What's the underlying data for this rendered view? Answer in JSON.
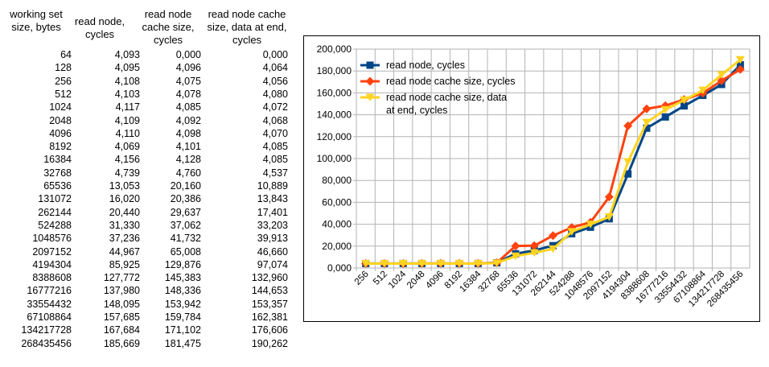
{
  "table": {
    "headers": [
      "working set\nsize, bytes",
      "read node,\ncycles",
      "read node\ncache size,\ncycles",
      "read node cache\nsize, data at end,\ncycles"
    ],
    "rows": [
      [
        "64",
        "4,093",
        "0,000",
        "0,000"
      ],
      [
        "128",
        "4,095",
        "4,096",
        "4,064"
      ],
      [
        "256",
        "4,108",
        "4,075",
        "4,056"
      ],
      [
        "512",
        "4,103",
        "4,078",
        "4,080"
      ],
      [
        "1024",
        "4,117",
        "4,085",
        "4,072"
      ],
      [
        "2048",
        "4,109",
        "4,092",
        "4,068"
      ],
      [
        "4096",
        "4,110",
        "4,098",
        "4,070"
      ],
      [
        "8192",
        "4,069",
        "4,101",
        "4,085"
      ],
      [
        "16384",
        "4,156",
        "4,128",
        "4,085"
      ],
      [
        "32768",
        "4,739",
        "4,760",
        "4,537"
      ],
      [
        "65536",
        "13,053",
        "20,160",
        "10,889"
      ],
      [
        "131072",
        "16,020",
        "20,386",
        "13,843"
      ],
      [
        "262144",
        "20,440",
        "29,637",
        "17,401"
      ],
      [
        "524288",
        "31,330",
        "37,062",
        "33,203"
      ],
      [
        "1048576",
        "37,236",
        "41,732",
        "39,913"
      ],
      [
        "2097152",
        "44,967",
        "65,008",
        "46,660"
      ],
      [
        "4194304",
        "85,925",
        "129,876",
        "97,074"
      ],
      [
        "8388608",
        "127,772",
        "145,383",
        "132,960"
      ],
      [
        "16777216",
        "137,980",
        "148,336",
        "144,653"
      ],
      [
        "33554432",
        "148,095",
        "153,942",
        "153,357"
      ],
      [
        "67108864",
        "157,685",
        "159,784",
        "162,381"
      ],
      [
        "134217728",
        "167,684",
        "171,102",
        "176,606"
      ],
      [
        "268435456",
        "185,669",
        "181,475",
        "190,262"
      ]
    ]
  },
  "chart_data": {
    "type": "line",
    "categories": [
      "256",
      "512",
      "1024",
      "2048",
      "4096",
      "8192",
      "16384",
      "32768",
      "65536",
      "131072",
      "262144",
      "524288",
      "1048576",
      "2097152",
      "4194304",
      "8388608",
      "16777216",
      "33554432",
      "67108864",
      "134217728",
      "268435456"
    ],
    "ylim": [
      0,
      200000
    ],
    "yticks": [
      "0,000",
      "20,000",
      "40,000",
      "60,000",
      "80,000",
      "100,000",
      "120,000",
      "140,000",
      "160,000",
      "180,000",
      "200,000"
    ],
    "grid": true,
    "legend_position": "top-left",
    "series": [
      {
        "name": "read node, cycles",
        "color": "#004586",
        "marker": "square",
        "values": [
          4108,
          4103,
          4117,
          4109,
          4110,
          4069,
          4156,
          4739,
          13053,
          16020,
          20440,
          31330,
          37236,
          44967,
          85925,
          127772,
          137980,
          148095,
          157685,
          167684,
          185669
        ]
      },
      {
        "name": "read node cache size, cycles",
        "color": "#ff420e",
        "marker": "diamond",
        "values": [
          4075,
          4078,
          4085,
          4092,
          4098,
          4101,
          4128,
          4760,
          20160,
          20386,
          29637,
          37062,
          41732,
          65008,
          129876,
          145383,
          148336,
          153942,
          159784,
          171102,
          181475
        ]
      },
      {
        "name": "read node cache size, data at end, cycles",
        "legend_lines": [
          "read node cache size, data",
          "at end, cycles"
        ],
        "color": "#ffd320",
        "marker": "triangle",
        "values": [
          4056,
          4080,
          4072,
          4068,
          4070,
          4085,
          4085,
          4537,
          10889,
          13843,
          17401,
          33203,
          39913,
          46660,
          97074,
          132960,
          144653,
          153357,
          162381,
          176606,
          190262
        ]
      }
    ]
  }
}
